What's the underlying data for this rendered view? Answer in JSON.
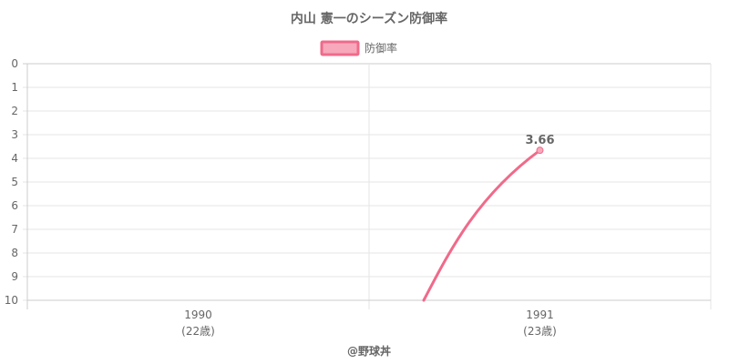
{
  "chart_data": {
    "type": "line",
    "title": "内山 憲一のシーズン防御率",
    "categories": [
      "1990",
      "1991"
    ],
    "category_sublabels": [
      "(22歳)",
      "(23歳)"
    ],
    "series": [
      {
        "name": "防御率",
        "values": [
          null,
          3.66
        ],
        "data_labels": [
          "",
          "3.66"
        ]
      }
    ],
    "y_ticks": [
      "0",
      "1",
      "2",
      "3",
      "4",
      "5",
      "6",
      "7",
      "8",
      "9",
      "10"
    ],
    "ylim": [
      0,
      10
    ],
    "y_reversed": true,
    "grid": true,
    "legend_position": "top",
    "colors": {
      "line": "#f06a8a",
      "fill": "#f7a8bb",
      "grid": "#e5e5e5",
      "axis": "#cccccc",
      "text": "#666666"
    }
  },
  "footer": {
    "credit": "@野球丼"
  }
}
